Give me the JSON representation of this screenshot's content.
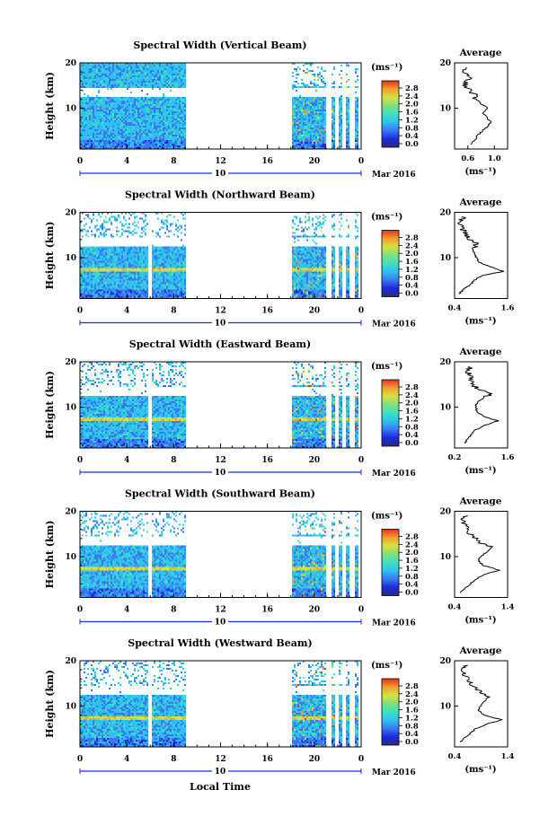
{
  "figure": {
    "x_label": "Local Time",
    "date_label": "Mar 2016",
    "date_day": "10",
    "x_ticks": [
      "0",
      "4",
      "8",
      "12",
      "16",
      "20",
      "0"
    ],
    "y_label": "Height (km)",
    "y_ticks": [
      "20",
      "10"
    ],
    "colorbar_unit": "(ms⁻¹)",
    "colorbar_ticks": [
      "2.8",
      "2.4",
      "2.0",
      "1.6",
      "1.2",
      "0.8",
      "0.4",
      "0.0"
    ],
    "average_title": "Average",
    "average_unit": "(ms⁻¹)"
  },
  "colors": {
    "colormap": [
      "#2a2a7e",
      "#1a2be0",
      "#3a78f0",
      "#2ec0f0",
      "#3ee0c0",
      "#7ee07e",
      "#d8e040",
      "#f0a030",
      "#e83020"
    ]
  },
  "chart_data": [
    {
      "type": "heatmap",
      "title": "Spectral Width (Vertical Beam)",
      "ylabel": "Height (km)",
      "xlabel": "",
      "x_range": [
        0,
        24
      ],
      "y_range": [
        1,
        20
      ],
      "color_range": [
        0.0,
        3.0
      ],
      "data_gaps_hours": [
        [
          9,
          18
        ]
      ],
      "average_profile": {
        "x_ticks": [
          "0.6",
          "1.0"
        ],
        "xlim": [
          0.4,
          1.2
        ],
        "height_km": [
          2,
          3,
          4,
          5,
          6,
          7,
          8,
          9,
          10,
          11,
          12,
          13,
          14,
          15,
          16,
          17,
          18,
          19
        ],
        "width": [
          0.65,
          0.7,
          0.75,
          0.82,
          0.9,
          0.95,
          0.88,
          0.82,
          0.9,
          0.8,
          0.72,
          0.7,
          0.62,
          0.55,
          0.6,
          0.65,
          0.55,
          0.6
        ]
      }
    },
    {
      "type": "heatmap",
      "title": "Spectral Width (Northward Beam)",
      "ylabel": "Height (km)",
      "xlabel": "",
      "x_range": [
        0,
        24
      ],
      "y_range": [
        1,
        20
      ],
      "color_range": [
        0.0,
        3.0
      ],
      "data_gaps_hours": [
        [
          9,
          18
        ]
      ],
      "average_profile": {
        "x_ticks": [
          "0.4",
          "1.6"
        ],
        "xlim": [
          0.4,
          1.6
        ],
        "height_km": [
          2,
          3,
          4,
          5,
          6,
          7,
          8,
          9,
          10,
          11,
          12,
          13,
          14,
          15,
          16,
          17,
          18,
          19
        ],
        "width": [
          0.5,
          0.6,
          0.75,
          0.85,
          1.0,
          1.5,
          1.2,
          0.95,
          0.9,
          0.85,
          0.8,
          0.9,
          0.75,
          0.65,
          0.6,
          0.55,
          0.5,
          0.6
        ]
      }
    },
    {
      "type": "heatmap",
      "title": "Spectral Width (Eastward Beam)",
      "ylabel": "Height (km)",
      "xlabel": "",
      "x_range": [
        0,
        24
      ],
      "y_range": [
        1,
        20
      ],
      "color_range": [
        0.0,
        3.0
      ],
      "data_gaps_hours": [
        [
          9,
          18
        ]
      ],
      "average_profile": {
        "x_ticks": [
          "0.2",
          "1.6"
        ],
        "xlim": [
          0.2,
          1.6
        ],
        "height_km": [
          2,
          3,
          4,
          5,
          6,
          7,
          8,
          9,
          10,
          11,
          12,
          13,
          14,
          15,
          16,
          17,
          18,
          19
        ],
        "width": [
          0.45,
          0.55,
          0.65,
          0.75,
          1.0,
          1.35,
          0.95,
          0.8,
          0.75,
          0.8,
          0.95,
          1.2,
          0.8,
          0.7,
          0.65,
          0.6,
          0.55,
          0.65
        ]
      }
    },
    {
      "type": "heatmap",
      "title": "Spectral Width (Southward Beam)",
      "ylabel": "Height (km)",
      "xlabel": "",
      "x_range": [
        0,
        24
      ],
      "y_range": [
        1,
        20
      ],
      "color_range": [
        0.0,
        3.0
      ],
      "data_gaps_hours": [
        [
          9,
          18
        ]
      ],
      "average_profile": {
        "x_ticks": [
          "0.4",
          "1.4"
        ],
        "xlim": [
          0.4,
          1.4
        ],
        "height_km": [
          2,
          3,
          4,
          5,
          6,
          7,
          8,
          9,
          10,
          11,
          12,
          13,
          14,
          15,
          16,
          17,
          18,
          19
        ],
        "width": [
          0.5,
          0.6,
          0.7,
          0.8,
          0.95,
          1.25,
          0.95,
          0.85,
          0.9,
          1.0,
          1.1,
          0.9,
          0.8,
          0.7,
          0.65,
          0.6,
          0.55,
          0.6
        ]
      }
    },
    {
      "type": "heatmap",
      "title": "Spectral Width (Westward Beam)",
      "ylabel": "Height (km)",
      "xlabel": "Local Time",
      "x_range": [
        0,
        24
      ],
      "y_range": [
        1,
        20
      ],
      "color_range": [
        0.0,
        3.0
      ],
      "data_gaps_hours": [
        [
          9,
          18
        ]
      ],
      "average_profile": {
        "x_ticks": [
          "0.4",
          "1.4"
        ],
        "xlim": [
          0.4,
          1.4
        ],
        "height_km": [
          2,
          3,
          4,
          5,
          6,
          7,
          8,
          9,
          10,
          11,
          12,
          13,
          14,
          15,
          16,
          17,
          18,
          19
        ],
        "width": [
          0.5,
          0.6,
          0.7,
          0.8,
          1.0,
          1.3,
          0.95,
          0.85,
          0.9,
          0.95,
          1.05,
          0.9,
          0.8,
          0.7,
          0.65,
          0.6,
          0.55,
          0.6
        ]
      }
    }
  ]
}
